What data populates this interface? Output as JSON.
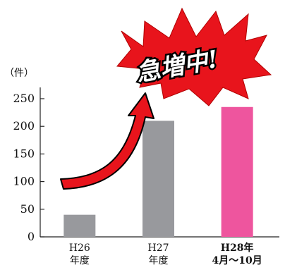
{
  "chart_data": {
    "type": "bar",
    "unit_label": "（件）",
    "categories": [
      {
        "line1": "H26",
        "line2": "年度",
        "bold": false
      },
      {
        "line1": "H27",
        "line2": "年度",
        "bold": false
      },
      {
        "line1": "H28年",
        "line2": "4月〜10月",
        "bold": true
      }
    ],
    "values": [
      40,
      210,
      235
    ],
    "bar_colors": [
      "#98999d",
      "#98999d",
      "#ee559e"
    ],
    "ylim": [
      0,
      250
    ],
    "yticks": [
      0,
      50,
      100,
      150,
      200,
      250
    ],
    "grid": false,
    "annotation": {
      "text": "急増中!",
      "burst_color": "#e8141c",
      "arrow_color": "#e8141c"
    }
  }
}
